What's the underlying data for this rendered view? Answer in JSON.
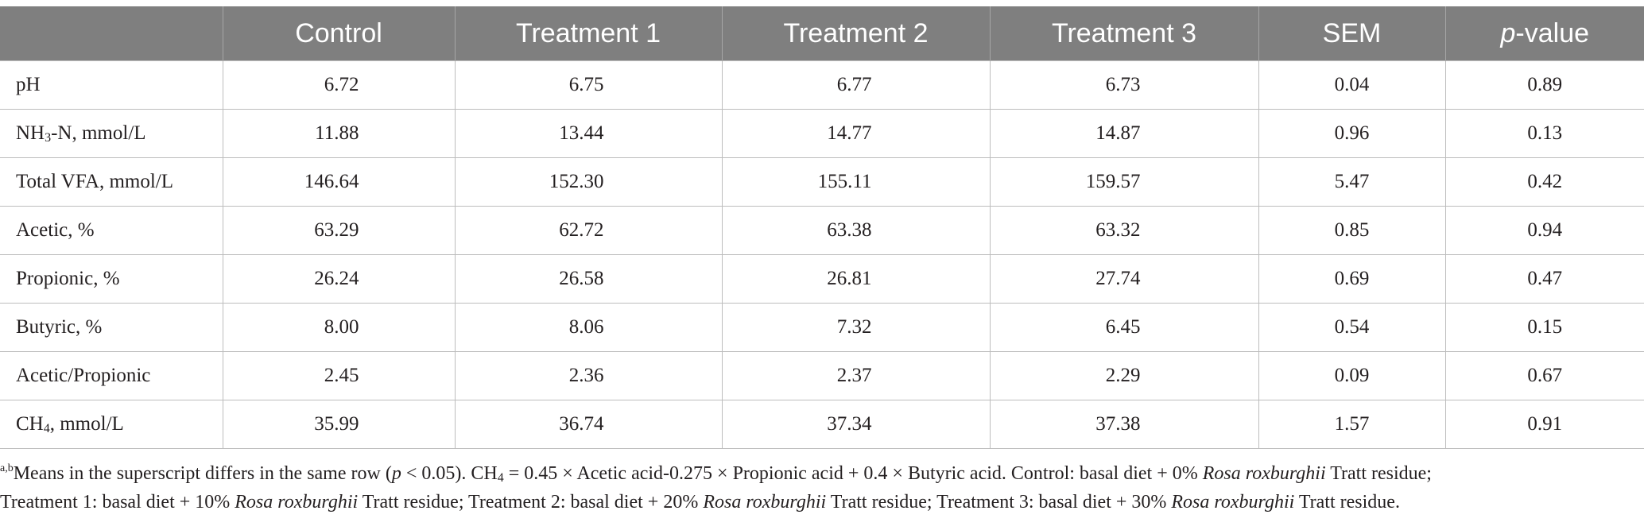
{
  "header": {
    "col0": "",
    "control": "Control",
    "t1": "Treatment 1",
    "t2": "Treatment 2",
    "t3": "Treatment 3",
    "sem": "SEM",
    "p_italic": "p",
    "p_rest": "-value"
  },
  "rows": [
    {
      "label_main": "pH",
      "label_sub": "",
      "label_tail": "",
      "control": "6.72",
      "t1": "6.75",
      "t2": "6.77",
      "t3": "6.73",
      "sem": "0.04",
      "p": "0.89"
    },
    {
      "label_main": "NH",
      "label_sub": "3",
      "label_tail": "-N, mmol/L",
      "control": "11.88",
      "t1": "13.44",
      "t2": "14.77",
      "t3": "14.87",
      "sem": "0.96",
      "p": "0.13"
    },
    {
      "label_main": "Total VFA, mmol/L",
      "label_sub": "",
      "label_tail": "",
      "control": "146.64",
      "t1": "152.30",
      "t2": "155.11",
      "t3": "159.57",
      "sem": "5.47",
      "p": "0.42"
    },
    {
      "label_main": "Acetic, %",
      "label_sub": "",
      "label_tail": "",
      "control": "63.29",
      "t1": "62.72",
      "t2": "63.38",
      "t3": "63.32",
      "sem": "0.85",
      "p": "0.94"
    },
    {
      "label_main": "Propionic, %",
      "label_sub": "",
      "label_tail": "",
      "control": "26.24",
      "t1": "26.58",
      "t2": "26.81",
      "t3": "27.74",
      "sem": "0.69",
      "p": "0.47"
    },
    {
      "label_main": "Butyric, %",
      "label_sub": "",
      "label_tail": "",
      "control": "8.00",
      "t1": "8.06",
      "t2": "7.32",
      "t3": "6.45",
      "sem": "0.54",
      "p": "0.15"
    },
    {
      "label_main": "Acetic/Propionic",
      "label_sub": "",
      "label_tail": "",
      "control": "2.45",
      "t1": "2.36",
      "t2": "2.37",
      "t3": "2.29",
      "sem": "0.09",
      "p": "0.67"
    },
    {
      "label_main": "CH",
      "label_sub": "4",
      "label_tail": ", mmol/L",
      "control": "35.99",
      "t1": "36.74",
      "t2": "37.34",
      "t3": "37.38",
      "sem": "1.57",
      "p": "0.91"
    }
  ],
  "footnote": {
    "sup": "a,b",
    "s1": "Means in the superscript differs in the same row (",
    "p_italic": "p",
    "s2": " < 0.05). CH",
    "ch4_sub": "4",
    "s3": " = 0.45 × Acetic acid-0.275 × Propionic acid + 0.4 × Butyric acid. Control: basal diet + 0% ",
    "species1": "Rosa roxburghii",
    "s4": " Tratt residue;",
    "s5": "Treatment 1: basal diet + 10% ",
    "species2": "Rosa roxburghii",
    "s6": " Tratt residue; Treatment 2: basal diet + 20% ",
    "species3": "Rosa roxburghii",
    "s7": " Tratt residue; Treatment 3: basal diet + 30% ",
    "species4": "Rosa roxburghii",
    "s8": " Tratt residue."
  }
}
